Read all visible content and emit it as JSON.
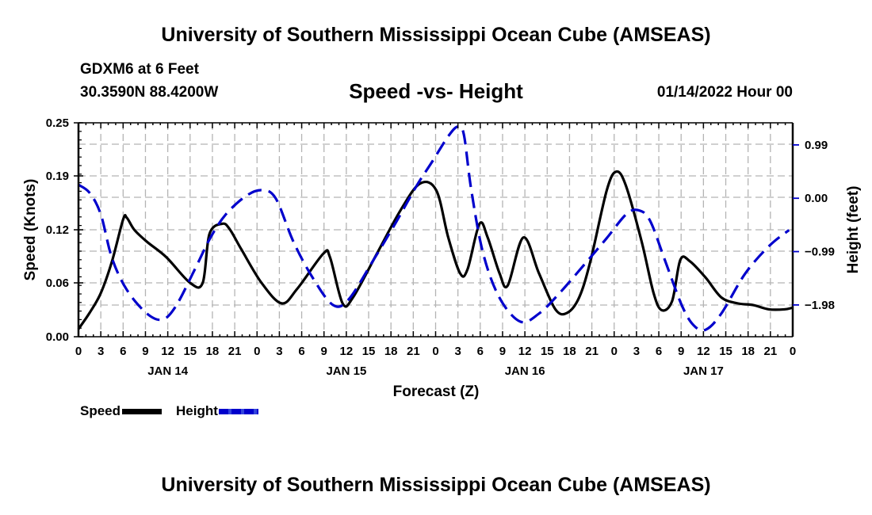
{
  "header": {
    "title": "University of Southern Mississippi Ocean Cube (AMSEAS)",
    "station": "GDXM6 at 6 Feet",
    "coordinates": "30.3590N  88.4200W",
    "subtitle": "Speed -vs- Height",
    "datetime": "01/14/2022 Hour 00"
  },
  "footer": {
    "title": "University of Southern Mississippi Ocean Cube (AMSEAS)"
  },
  "legend": {
    "speed_label": "Speed",
    "height_label": "Height"
  },
  "colors": {
    "speed": "#000000",
    "height": "#0000cc",
    "grid": "#b4b4b4"
  },
  "chart_data": {
    "type": "line",
    "title": "Speed -vs- Height",
    "xlabel": "Forecast (Z)",
    "ylabel": "Speed (Knots)",
    "y2label": "Height (feet)",
    "xlim": [
      0,
      96
    ],
    "ylim": [
      0,
      0.25
    ],
    "y2lim": [
      -2.57,
      1.4
    ],
    "grid": true,
    "legend_position": "bottom-left",
    "x_ticks": [
      0,
      3,
      6,
      9,
      12,
      15,
      18,
      21,
      24,
      27,
      30,
      33,
      36,
      39,
      42,
      45,
      48,
      51,
      54,
      57,
      60,
      63,
      66,
      69,
      72,
      75,
      78,
      81,
      84,
      87,
      90,
      93,
      96
    ],
    "x_tick_labels": [
      "0",
      "3",
      "6",
      "9",
      "12",
      "15",
      "18",
      "21",
      "0",
      "3",
      "6",
      "9",
      "12",
      "15",
      "18",
      "21",
      "0",
      "3",
      "6",
      "9",
      "12",
      "15",
      "18",
      "21",
      "0",
      "3",
      "6",
      "9",
      "12",
      "15",
      "18",
      "21",
      "0"
    ],
    "day_labels": [
      {
        "hour": 12,
        "label": "JAN 14"
      },
      {
        "hour": 36,
        "label": "JAN 15"
      },
      {
        "hour": 60,
        "label": "JAN 16"
      },
      {
        "hour": 84,
        "label": "JAN 17"
      }
    ],
    "y_ticks": [
      0.0,
      0.06,
      0.12,
      0.19,
      0.25
    ],
    "y_tick_labels": [
      "0.00",
      "0.06",
      "0.12",
      "0.19",
      "0.25"
    ],
    "y2_ticks": [
      0.99,
      0.0,
      -0.99,
      -1.98
    ],
    "y2_tick_labels": [
      "0.99",
      "0.00",
      "−0.99",
      "−1.98"
    ],
    "series": [
      {
        "name": "Speed",
        "axis": "left",
        "style": "solid",
        "x": [
          0,
          1.5,
          3,
          4.5,
          6,
          6.5,
          7.5,
          9.2,
          11.8,
          15,
          16.7,
          17.6,
          19.3,
          20.3,
          21.9,
          24.6,
          27.3,
          29.4,
          32.9,
          33.8,
          35.5,
          36.9,
          40.1,
          43.3,
          45.9,
          48.1,
          49.7,
          51.3,
          52.3,
          53.9,
          55,
          56.6,
          57.7,
          59.8,
          61.9,
          64.1,
          65.7,
          67.3,
          68.8,
          71,
          72.3,
          73.6,
          75.7,
          77.3,
          78.4,
          79.8,
          80.9,
          82.2,
          84.3,
          86.4,
          88.6,
          90.7,
          92.8,
          94.9,
          96
        ],
        "values": [
          0.009,
          0.028,
          0.051,
          0.088,
          0.137,
          0.139,
          0.125,
          0.111,
          0.093,
          0.063,
          0.063,
          0.12,
          0.132,
          0.126,
          0.102,
          0.063,
          0.039,
          0.056,
          0.097,
          0.093,
          0.039,
          0.046,
          0.097,
          0.148,
          0.179,
          0.171,
          0.116,
          0.074,
          0.079,
          0.132,
          0.116,
          0.074,
          0.06,
          0.116,
          0.074,
          0.032,
          0.028,
          0.046,
          0.088,
          0.171,
          0.193,
          0.176,
          0.111,
          0.051,
          0.031,
          0.042,
          0.09,
          0.088,
          0.069,
          0.046,
          0.039,
          0.037,
          0.032,
          0.032,
          0.034
        ]
      },
      {
        "name": "Height",
        "axis": "right",
        "style": "dashed",
        "x": [
          0,
          1.5,
          3,
          4.5,
          6.5,
          9.2,
          11.3,
          13.1,
          15.6,
          17.7,
          19.8,
          22.5,
          24.6,
          26.5,
          28.9,
          31.5,
          34.2,
          36.3,
          39.5,
          42.7,
          45.4,
          47.5,
          49.7,
          51,
          51.8,
          52.8,
          54.4,
          56.6,
          59.4,
          61.9,
          64.6,
          68.3,
          71,
          73.6,
          75.2,
          76.8,
          78.9,
          81.1,
          82.7,
          84.3,
          86.4,
          89.6,
          92.8,
          95.5
        ],
        "values": [
          0.25,
          0.1,
          -0.3,
          -1.11,
          -1.7,
          -2.14,
          -2.25,
          -2.0,
          -1.33,
          -0.74,
          -0.3,
          0.04,
          0.15,
          0.0,
          -0.81,
          -1.48,
          -1.98,
          -1.88,
          -1.18,
          -0.44,
          0.22,
          0.67,
          1.15,
          1.33,
          1.18,
          0.15,
          -1.03,
          -1.85,
          -2.29,
          -2.14,
          -1.77,
          -1.18,
          -0.74,
          -0.3,
          -0.22,
          -0.41,
          -1.18,
          -1.99,
          -2.36,
          -2.44,
          -2.14,
          -1.4,
          -0.89,
          -0.59
        ]
      }
    ]
  }
}
